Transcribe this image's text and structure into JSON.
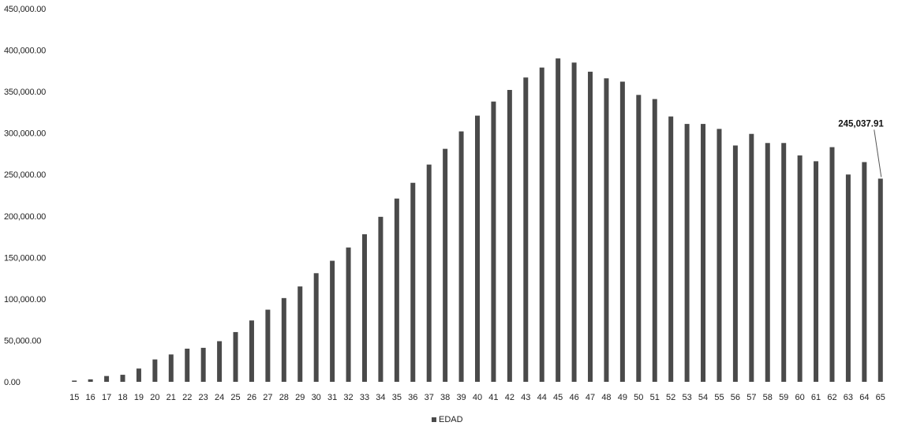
{
  "chart_data": {
    "type": "bar",
    "title": "",
    "xlabel": "",
    "ylabel": "",
    "ylim": [
      0,
      450000
    ],
    "y_ticks": [
      "0.00",
      "50,000.00",
      "100,000.00",
      "150,000.00",
      "200,000.00",
      "250,000.00",
      "300,000.00",
      "350,000.00",
      "400,000.00",
      "450,000.00"
    ],
    "categories": [
      "15",
      "16",
      "17",
      "18",
      "19",
      "20",
      "21",
      "22",
      "23",
      "24",
      "25",
      "26",
      "27",
      "28",
      "29",
      "30",
      "31",
      "32",
      "33",
      "34",
      "35",
      "36",
      "37",
      "38",
      "39",
      "40",
      "41",
      "42",
      "43",
      "44",
      "45",
      "46",
      "47",
      "48",
      "49",
      "50",
      "51",
      "52",
      "53",
      "54",
      "55",
      "56",
      "57",
      "58",
      "59",
      "60",
      "61",
      "62",
      "63",
      "64",
      "65"
    ],
    "series": [
      {
        "name": "EDAD",
        "color": "#4a4a4a",
        "values": [
          1500,
          3000,
          7000,
          8500,
          16000,
          27000,
          33000,
          40000,
          41000,
          49000,
          60000,
          74000,
          87000,
          101000,
          115000,
          131000,
          146000,
          162000,
          178000,
          199000,
          221000,
          240000,
          262000,
          281000,
          302000,
          321000,
          338000,
          352000,
          367000,
          379000,
          390000,
          385000,
          374000,
          366000,
          362000,
          346000,
          341000,
          320000,
          311000,
          311000,
          305000,
          285000,
          299000,
          288000,
          288000,
          273000,
          266000,
          283000,
          250000,
          265000,
          245037.91
        ]
      }
    ],
    "data_labels": [
      {
        "category": "65",
        "text": "245,037.91"
      }
    ],
    "grid": false,
    "legend": {
      "position": "bottom",
      "label": "EDAD"
    }
  }
}
